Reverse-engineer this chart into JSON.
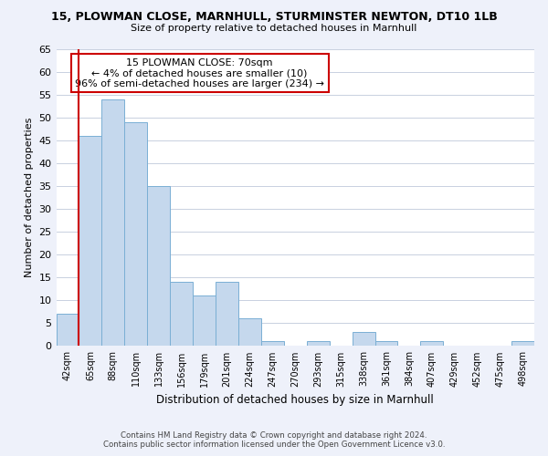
{
  "title": "15, PLOWMAN CLOSE, MARNHULL, STURMINSTER NEWTON, DT10 1LB",
  "subtitle": "Size of property relative to detached houses in Marnhull",
  "xlabel": "Distribution of detached houses by size in Marnhull",
  "ylabel": "Number of detached properties",
  "bar_labels": [
    "42sqm",
    "65sqm",
    "88sqm",
    "110sqm",
    "133sqm",
    "156sqm",
    "179sqm",
    "201sqm",
    "224sqm",
    "247sqm",
    "270sqm",
    "293sqm",
    "315sqm",
    "338sqm",
    "361sqm",
    "384sqm",
    "407sqm",
    "429sqm",
    "452sqm",
    "475sqm",
    "498sqm"
  ],
  "bar_values": [
    7,
    46,
    54,
    49,
    35,
    14,
    11,
    14,
    6,
    1,
    0,
    1,
    0,
    3,
    1,
    0,
    1,
    0,
    0,
    0,
    1
  ],
  "bar_color": "#c5d8ed",
  "bar_edge_color": "#7aafd4",
  "highlight_line_color": "#cc0000",
  "annotation_title": "15 PLOWMAN CLOSE: 70sqm",
  "annotation_line1": "← 4% of detached houses are smaller (10)",
  "annotation_line2": "96% of semi-detached houses are larger (234) →",
  "annotation_box_color": "#ffffff",
  "annotation_box_edge": "#cc0000",
  "ylim": [
    0,
    65
  ],
  "yticks": [
    0,
    5,
    10,
    15,
    20,
    25,
    30,
    35,
    40,
    45,
    50,
    55,
    60,
    65
  ],
  "footer_line1": "Contains HM Land Registry data © Crown copyright and database right 2024.",
  "footer_line2": "Contains public sector information licensed under the Open Government Licence v3.0.",
  "bg_color": "#eef1fa",
  "plot_bg_color": "#ffffff",
  "grid_color": "#c8d0e0"
}
